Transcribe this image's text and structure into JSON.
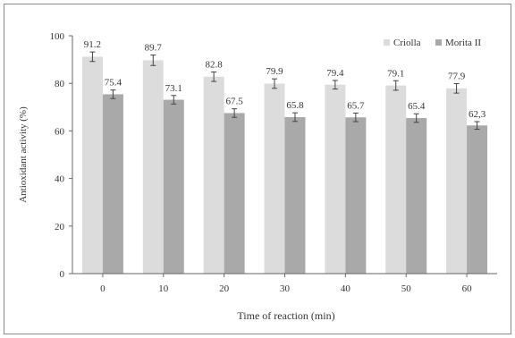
{
  "chart_data": {
    "type": "bar",
    "title": "",
    "xlabel": "Time of reaction (min)",
    "ylabel": "Antioxidant activity (%)",
    "categories": [
      "0",
      "10",
      "20",
      "30",
      "40",
      "50",
      "60"
    ],
    "ylim": [
      0,
      100
    ],
    "yticks": [
      "0",
      "20",
      "40",
      "60",
      "80",
      "100"
    ],
    "grid": false,
    "legend_position": "top-right",
    "series": [
      {
        "name": "Criolla",
        "color": "#dcdcdc",
        "values": [
          91.2,
          89.7,
          82.8,
          79.9,
          79.4,
          79.1,
          77.9
        ],
        "labels": [
          "91.2",
          "89.7",
          "82.8",
          "79.9",
          "79.4",
          "79.1",
          "77.9"
        ],
        "errors": [
          2.0,
          2.2,
          2.0,
          2.0,
          1.8,
          2.0,
          2.0
        ]
      },
      {
        "name": "Morita II",
        "color": "#a9a9a9",
        "values": [
          75.4,
          73.1,
          67.5,
          65.8,
          65.7,
          65.4,
          62.3
        ],
        "labels": [
          "75.4",
          "73.1",
          "67.5",
          "65.8",
          "65.7",
          "65.4",
          "62,3"
        ],
        "errors": [
          1.8,
          1.8,
          1.8,
          1.8,
          1.8,
          1.8,
          1.6
        ]
      }
    ]
  }
}
